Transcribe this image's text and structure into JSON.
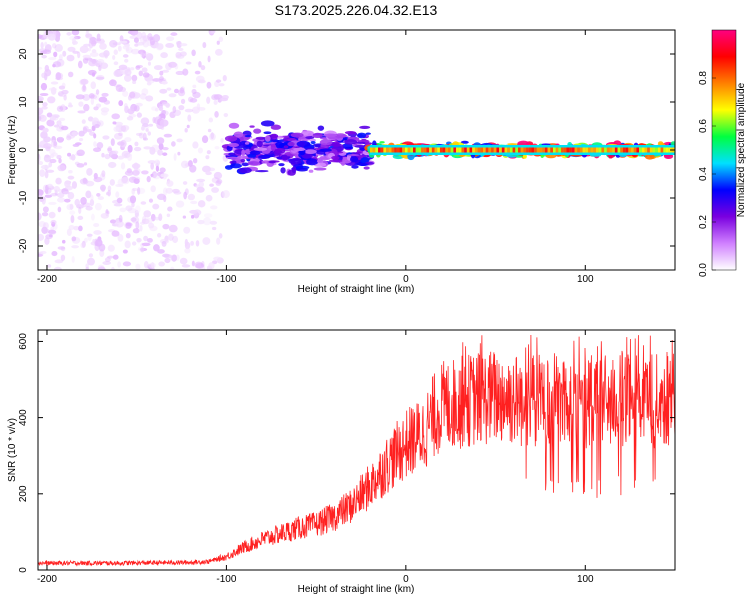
{
  "title": "S173.2025.226.04.32.E13",
  "chart_data": [
    {
      "type": "heatmap",
      "name": "spectrogram",
      "xlabel": "Height of straight line (km)",
      "ylabel": "Frequency (Hz)",
      "xlim": [
        -205,
        150
      ],
      "ylim": [
        -25,
        25
      ],
      "x_ticks": [
        -200,
        -100,
        0,
        100
      ],
      "y_ticks": [
        -20,
        -10,
        0,
        10,
        20
      ],
      "colorbar": {
        "label": "Normalized spectral amplitude",
        "range": [
          0,
          1
        ],
        "ticks": [
          0.0,
          0.2,
          0.4,
          0.6,
          0.8
        ],
        "tick_labels": [
          "0.0",
          "0.2",
          "0.4",
          "0.6",
          "0.8"
        ],
        "colors": [
          "#ffffff",
          "#d080ff",
          "#7a00e0",
          "#0000ff",
          "#00e0ff",
          "#00ff40",
          "#ffff00",
          "#ff8000",
          "#ff0000",
          "#ff0080"
        ]
      },
      "description_regions": [
        {
          "x_from": -205,
          "x_to": -100,
          "level": 0.05,
          "spread_hz": 25
        },
        {
          "x_from": -100,
          "x_to": -20,
          "level": 0.25,
          "spread_hz": 5
        },
        {
          "x_from": -20,
          "x_to": 150,
          "level": 0.75,
          "spread_hz": 1.5
        }
      ]
    },
    {
      "type": "line",
      "name": "snr",
      "xlabel": "Height of straight line (km)",
      "ylabel": "SNR (10 * v/v)",
      "xlim": [
        -205,
        150
      ],
      "ylim": [
        0,
        630
      ],
      "x_ticks": [
        -200,
        -100,
        0,
        100
      ],
      "y_ticks": [
        0,
        200,
        400,
        600
      ],
      "color": "#ff2020",
      "series": [
        {
          "name": "SNR",
          "x": [
            -205,
            -180,
            -160,
            -140,
            -120,
            -110,
            -100,
            -90,
            -80,
            -70,
            -60,
            -50,
            -40,
            -30,
            -20,
            -10,
            0,
            10,
            15,
            20,
            30,
            40,
            50,
            60,
            70,
            80,
            90,
            100,
            110,
            120,
            130,
            140,
            150
          ],
          "values": [
            18,
            18,
            18,
            19,
            20,
            22,
            35,
            60,
            80,
            95,
            110,
            120,
            140,
            170,
            220,
            280,
            330,
            360,
            400,
            430,
            440,
            450,
            455,
            450,
            440,
            445,
            450,
            440,
            445,
            450,
            440,
            445,
            450
          ]
        }
      ]
    }
  ]
}
